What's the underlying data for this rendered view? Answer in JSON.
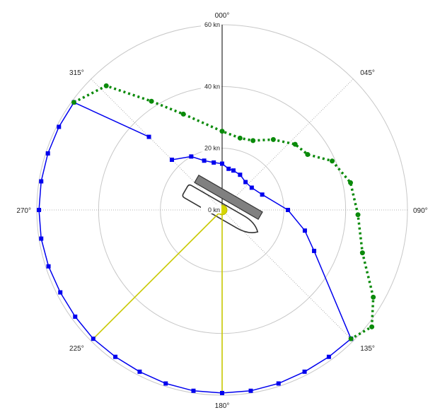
{
  "chart_data": {
    "type": "polar",
    "theta_direction": "clockwise",
    "theta_zero": "top",
    "radial_unit": "kn",
    "radial_range": [
      0,
      60
    ],
    "radial_ticks": [
      {
        "value": 0,
        "label": "0 kn"
      },
      {
        "value": 20,
        "label": "20 kn"
      },
      {
        "value": 40,
        "label": "40 kn"
      },
      {
        "value": 60,
        "label": "60 kn"
      }
    ],
    "angle_labels": [
      {
        "angle": 0,
        "label": "000°"
      },
      {
        "angle": 45,
        "label": "045°"
      },
      {
        "angle": 90,
        "label": "090°"
      },
      {
        "angle": 135,
        "label": "135°"
      },
      {
        "angle": 180,
        "label": "180°"
      },
      {
        "angle": 225,
        "label": "225°"
      },
      {
        "angle": 270,
        "label": "270°"
      },
      {
        "angle": 315,
        "label": "315°"
      }
    ],
    "grid": true,
    "series": [
      {
        "color": "#0000ee",
        "style": "solid-square-markers",
        "points": [
          {
            "angle": 0,
            "r": 15.0
          },
          {
            "angle": 9,
            "r": 13.5
          },
          {
            "angle": 16,
            "r": 13.3
          },
          {
            "angle": 27,
            "r": 12.8
          },
          {
            "angle": 40,
            "r": 11.8
          },
          {
            "angle": 53,
            "r": 12.0
          },
          {
            "angle": 69,
            "r": 13.9
          },
          {
            "angle": 90,
            "r": 21.3
          },
          {
            "angle": 104,
            "r": 27.6
          },
          {
            "angle": 114,
            "r": 32.6
          },
          {
            "angle": 135,
            "r": 59.0
          }
        ]
      },
      {
        "color": "#0000ee",
        "style": "solid-square-markers",
        "points": [
          {
            "angle": 315,
            "r": 23.0
          },
          {
            "angle": 330,
            "r": 20.0
          },
          {
            "angle": 340,
            "r": 17.0
          },
          {
            "angle": 350,
            "r": 15.6
          },
          {
            "angle": 0,
            "r": 15.0
          }
        ]
      },
      {
        "color": "#0000ee",
        "style": "solid-square-markers",
        "points": [
          {
            "angle": 135,
            "r": 59.0
          },
          {
            "angle": 144,
            "r": 58.8
          },
          {
            "angle": 153,
            "r": 58.8
          },
          {
            "angle": 162,
            "r": 59.1
          },
          {
            "angle": 171,
            "r": 59.3
          },
          {
            "angle": 180,
            "r": 59.3
          },
          {
            "angle": 189,
            "r": 59.3
          },
          {
            "angle": 198,
            "r": 59.1
          },
          {
            "angle": 207,
            "r": 58.8
          },
          {
            "angle": 216,
            "r": 58.8
          },
          {
            "angle": 225,
            "r": 59.0
          },
          {
            "angle": 234,
            "r": 58.8
          },
          {
            "angle": 243,
            "r": 58.8
          },
          {
            "angle": 252,
            "r": 59.1
          },
          {
            "angle": 261,
            "r": 59.3
          },
          {
            "angle": 270,
            "r": 59.3
          },
          {
            "angle": 279,
            "r": 59.3
          },
          {
            "angle": 288,
            "r": 59.3
          },
          {
            "angle": 297,
            "r": 59.3
          },
          {
            "angle": 306,
            "r": 59.3
          }
        ]
      },
      {
        "color": "#0000ee",
        "style": "solid-square-markers",
        "points": [
          {
            "angle": 306,
            "r": 59.3
          },
          {
            "angle": 315,
            "r": 33.5
          }
        ]
      },
      {
        "color": "#0a8a0a",
        "style": "dotted-circle-markers",
        "points": [
          {
            "angle": 306,
            "r": 59.3
          },
          {
            "angle": 317,
            "r": 55.0
          },
          {
            "angle": 327,
            "r": 42.0
          },
          {
            "angle": 338,
            "r": 33.5
          },
          {
            "angle": 0,
            "r": 25.5
          },
          {
            "angle": 14,
            "r": 24.0
          },
          {
            "angle": 24,
            "r": 24.6
          },
          {
            "angle": 36,
            "r": 28.2
          },
          {
            "angle": 48,
            "r": 31.8
          },
          {
            "angle": 57,
            "r": 33.0
          },
          {
            "angle": 66,
            "r": 39.0
          },
          {
            "angle": 78,
            "r": 42.5
          },
          {
            "angle": 92,
            "r": 44.0
          },
          {
            "angle": 107,
            "r": 47.5
          },
          {
            "angle": 120,
            "r": 56.5
          },
          {
            "angle": 128,
            "r": 61.5
          },
          {
            "angle": 135,
            "r": 59.0
          }
        ]
      }
    ],
    "wind_indicator": {
      "color": "#c8c800",
      "rays": [
        {
          "angle": 180,
          "r": 59.3
        },
        {
          "angle": 225,
          "r": 59.0
        }
      ]
    },
    "vessel": {
      "heading": 300,
      "hull_color": "#333333",
      "deck_color": "#808080"
    }
  }
}
